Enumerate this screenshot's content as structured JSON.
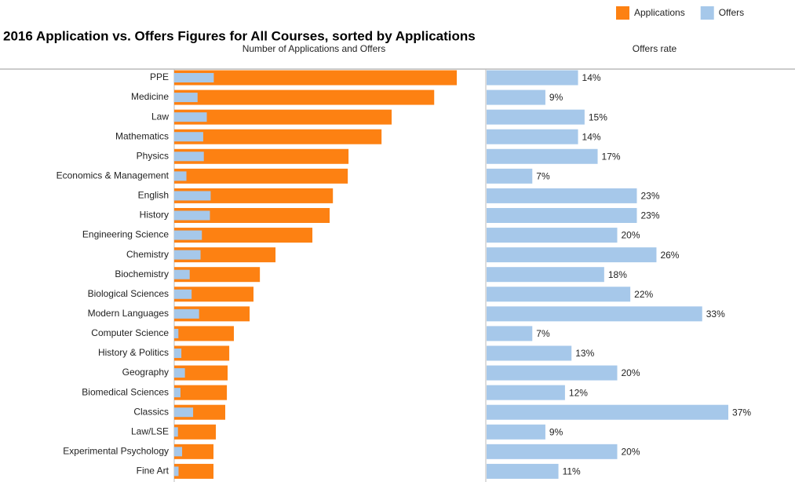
{
  "chart_data": [
    {
      "type": "bar",
      "title": "2016 Application vs. Offers Figures for All Courses, sorted by Applications",
      "subtitle": "Number of Applications and Offers",
      "categories": [
        "PPE",
        "Medicine",
        "Law",
        "Mathematics",
        "Physics",
        "Economics & Management",
        "English",
        "History",
        "Engineering Science",
        "Chemistry",
        "Biochemistry",
        "Biological Sciences",
        "Modern Languages",
        "Computer Science",
        "History & Politics",
        "Geography",
        "Biomedical Sciences",
        "Classics",
        "Law/LSE",
        "Experimental Psychology",
        "Fine Art"
      ],
      "series": [
        {
          "name": "Applications",
          "color": "#fd8112",
          "values": [
            1900,
            1748,
            1462,
            1394,
            1172,
            1167,
            1067,
            1045,
            929,
            681,
            576,
            533,
            507,
            401,
            370,
            359,
            354,
            343,
            280,
            264,
            264
          ]
        },
        {
          "name": "Offers",
          "color": "#a6c8ea",
          "values": [
            266,
            157,
            219,
            195,
            199,
            82,
            245,
            240,
            186,
            177,
            104,
            117,
            167,
            28,
            48,
            72,
            42,
            127,
            25,
            53,
            29
          ]
        }
      ],
      "xlim": [
        0,
        2000
      ],
      "legend": "top-right"
    },
    {
      "type": "bar",
      "subtitle": "Offers rate",
      "color": "#a6c8ea",
      "values": [
        14,
        9,
        15,
        14,
        17,
        7,
        23,
        23,
        20,
        26,
        18,
        22,
        33,
        7,
        13,
        20,
        12,
        37,
        9,
        20,
        11
      ],
      "value_labels": [
        "14%",
        "9%",
        "15%",
        "14%",
        "17%",
        "7%",
        "23%",
        "23%",
        "20%",
        "26%",
        "18%",
        "22%",
        "33%",
        "7%",
        "13%",
        "20%",
        "12%",
        "37%",
        "9%",
        "20%",
        "11%"
      ],
      "xlim": [
        0,
        40
      ]
    }
  ]
}
